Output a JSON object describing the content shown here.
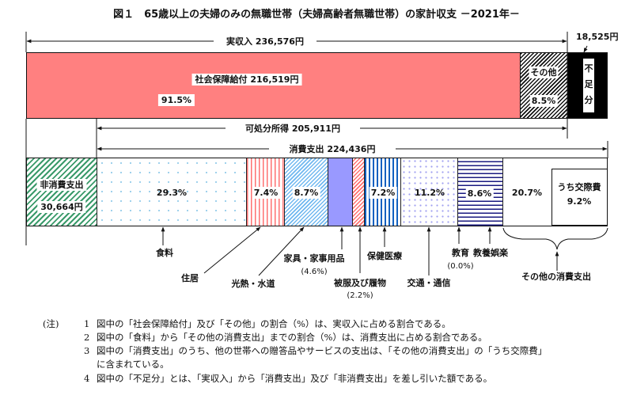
{
  "title": "図１　65歳以上の夫婦のみの無職世帯（夫婦高齢者無職世帯）の家計収支 －2021年－",
  "income": {
    "label": "実収入 236,576円",
    "social_security": "社会保障給付 216,519円",
    "social_security_pct": "91.5%",
    "other": "その他",
    "other_pct": "8.5%",
    "shortfall": "不足分",
    "shortfall_amount": "18,525円"
  },
  "disposable": "可処分所得 205,911円",
  "consumption": "消費支出 224,436円",
  "non_consumption": {
    "label": "非消費支出",
    "amount": "30,664円"
  },
  "segments": {
    "food": {
      "label": "食料",
      "pct": "29.3%"
    },
    "housing": {
      "label": "住居",
      "pct": "7.4%"
    },
    "utilities": {
      "label": "光熱・水道",
      "pct": "8.7%"
    },
    "furniture": {
      "label": "家具・家事用品",
      "pct": "(4.6%)"
    },
    "clothing": {
      "label": "被服及び履物",
      "pct": "(2.2%)"
    },
    "health": {
      "label": "保健医療",
      "pct": "7.2%"
    },
    "transport": {
      "label": "交通・通信",
      "pct": "11.2%"
    },
    "education": {
      "label": "教育",
      "pct": "(0.0%)"
    },
    "culture": {
      "label": "教養娯楽",
      "pct": "8.6%"
    },
    "other": {
      "label": "その他の消費支出",
      "pct": "20.7%",
      "social_label": "うち交際費",
      "social_pct": "9.2%"
    }
  },
  "notes": {
    "head": "(注)",
    "items": [
      {
        "num": "1",
        "text": "図中の「社会保障給付」及び「その他」の割合（%）は、実収入に占める割合である。"
      },
      {
        "num": "2",
        "text": "図中の「食料」から「その他の消費支出」までの割合（%）は、消費支出に占める割合である。"
      },
      {
        "num": "3",
        "text": "図中の「消費支出」のうち、他の世帯への贈答品やサービスの支出は、「その他の消費支出」の「うち交際費」"
      },
      {
        "num": "",
        "text": "に含まれている。"
      },
      {
        "num": "4",
        "text": "図中の「不足分」とは、「実収入」から「消費支出」及び「非消費支出」を差し引いた額である。"
      }
    ]
  }
}
